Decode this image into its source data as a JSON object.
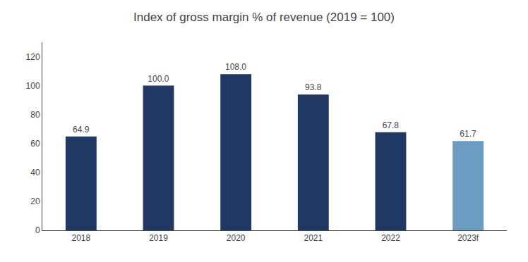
{
  "chart_data": {
    "type": "bar",
    "title": "Index of gross margin % of revenue (2019 = 100)",
    "categories": [
      "2018",
      "2019",
      "2020",
      "2021",
      "2022",
      "2023f"
    ],
    "values": [
      64.9,
      100.0,
      108.0,
      93.8,
      67.8,
      61.7
    ],
    "value_labels": [
      "64.9",
      "100.0",
      "108.0",
      "93.8",
      "67.8",
      "61.7"
    ],
    "colors": [
      "#1f3864",
      "#1f3864",
      "#1f3864",
      "#1f3864",
      "#1f3864",
      "#6b9dc2"
    ],
    "ylim": [
      0,
      130
    ],
    "yticks": [
      0,
      20,
      40,
      60,
      80,
      100,
      120
    ],
    "grid": false,
    "data_labels": true
  }
}
